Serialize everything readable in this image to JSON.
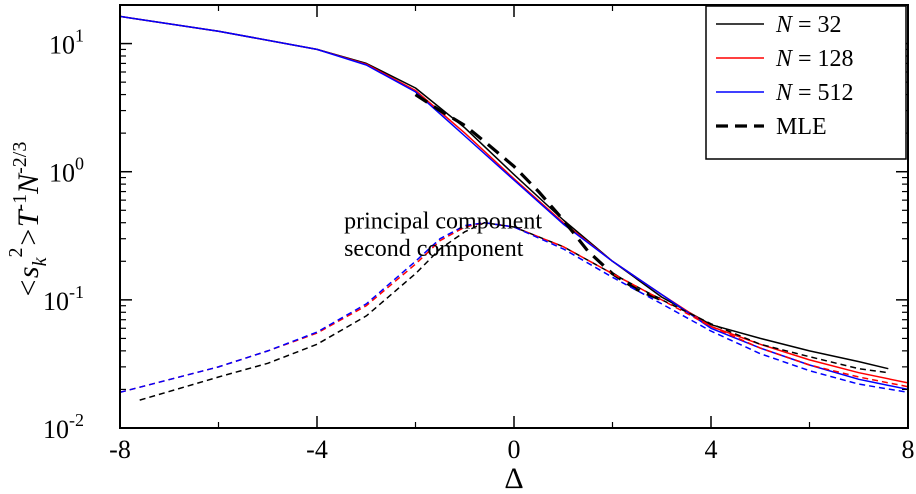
{
  "chart_data": {
    "type": "line",
    "xlabel": "Δ",
    "ylabel_parts": [
      "<s",
      "k",
      "2",
      ">T",
      "-1",
      "N",
      "-2/3"
    ],
    "xlim": [
      -8,
      8
    ],
    "ylim": [
      0.01,
      20
    ],
    "yscale": "log",
    "grid": false,
    "x_ticks": [
      -8,
      -4,
      0,
      4,
      8
    ],
    "x_tick_labels": [
      "-8",
      "-4",
      "0",
      "4",
      "8"
    ],
    "y_ticks": [
      {
        "value": 0.01,
        "base": "10",
        "exp": "-2"
      },
      {
        "value": 0.1,
        "base": "10",
        "exp": "-1"
      },
      {
        "value": 1,
        "base": "10",
        "exp": "0"
      },
      {
        "value": 10,
        "base": "10",
        "exp": "1"
      }
    ],
    "annotations": [
      {
        "text": "principal component",
        "x": -3.45,
        "y": 0.36
      },
      {
        "text": "second component",
        "x": -3.45,
        "y": 0.22
      }
    ],
    "legend": {
      "position": "top-right",
      "entries": [
        {
          "label_italic": "N",
          "label_rest": " = 32",
          "color": "#000000",
          "dash": "solid"
        },
        {
          "label_italic": "N",
          "label_rest": " = 128",
          "color": "#ff0000",
          "dash": "solid"
        },
        {
          "label_italic": "N",
          "label_rest": " = 512",
          "color": "#0000ff",
          "dash": "solid"
        },
        {
          "label_italic": "",
          "label_rest": "MLE",
          "color": "#000000",
          "dash": "dashed-bold"
        }
      ]
    },
    "series": [
      {
        "name": "N = 32",
        "component": "principal",
        "color": "#000000",
        "style": "solid",
        "x": [
          -8,
          -6,
          -4,
          -3,
          -2,
          -1,
          0,
          1,
          2,
          3,
          4,
          5,
          6,
          7,
          7.6
        ],
        "y": [
          16.3,
          12.5,
          9.0,
          7.0,
          4.5,
          2.2,
          0.95,
          0.42,
          0.2,
          0.105,
          0.064,
          0.05,
          0.04,
          0.033,
          0.029
        ]
      },
      {
        "name": "N = 128",
        "component": "principal",
        "color": "#ff0000",
        "style": "solid",
        "x": [
          -8,
          -6,
          -4,
          -3,
          -2,
          -1,
          0,
          1,
          2,
          3,
          4,
          5,
          6,
          7,
          8
        ],
        "y": [
          16.3,
          12.5,
          9.0,
          6.9,
          4.3,
          2.0,
          0.88,
          0.4,
          0.2,
          0.11,
          0.062,
          0.045,
          0.034,
          0.027,
          0.0225
        ]
      },
      {
        "name": "N = 512",
        "component": "principal",
        "color": "#0000ff",
        "style": "solid",
        "x": [
          -8,
          -6,
          -4,
          -3,
          -2,
          -1,
          0,
          1,
          2,
          3,
          4,
          5,
          6,
          7,
          8
        ],
        "y": [
          16.3,
          12.5,
          9.0,
          6.8,
          4.2,
          1.9,
          0.86,
          0.39,
          0.2,
          0.11,
          0.06,
          0.042,
          0.031,
          0.024,
          0.02
        ]
      },
      {
        "name": "MLE",
        "component": "principal",
        "color": "#000000",
        "style": "dashed-bold",
        "x": [
          -2,
          -1.5,
          -1,
          -0.5,
          0,
          0.5,
          1,
          1.5,
          2,
          2.5,
          3
        ],
        "y": [
          4.0,
          3.0,
          2.3,
          1.6,
          1.1,
          0.7,
          0.42,
          0.24,
          0.16,
          0.12,
          0.1
        ]
      },
      {
        "name": "N = 32",
        "component": "second",
        "color": "#000000",
        "style": "dashed",
        "x": [
          -7.6,
          -6,
          -5,
          -4,
          -3,
          -2,
          -1.5,
          -1,
          -0.6,
          0,
          1,
          2,
          3,
          4,
          5,
          6,
          7,
          7.6
        ],
        "y": [
          0.0165,
          0.025,
          0.032,
          0.045,
          0.075,
          0.16,
          0.25,
          0.34,
          0.4,
          0.37,
          0.26,
          0.16,
          0.1,
          0.065,
          0.045,
          0.036,
          0.029,
          0.027
        ]
      },
      {
        "name": "N = 128",
        "component": "second",
        "color": "#ff0000",
        "style": "dashed",
        "x": [
          -8,
          -6,
          -5,
          -4,
          -3,
          -2,
          -1.5,
          -1,
          -0.6,
          0,
          1,
          2,
          3,
          4,
          5,
          6,
          7,
          8
        ],
        "y": [
          0.019,
          0.03,
          0.04,
          0.055,
          0.09,
          0.19,
          0.29,
          0.37,
          0.4,
          0.37,
          0.26,
          0.16,
          0.1,
          0.062,
          0.042,
          0.031,
          0.025,
          0.021
        ]
      },
      {
        "name": "N = 512",
        "component": "second",
        "color": "#0000ff",
        "style": "dashed",
        "x": [
          -8,
          -6,
          -5,
          -4,
          -3,
          -2,
          -1.5,
          -1,
          -0.6,
          0,
          1,
          2,
          3,
          4,
          5,
          6,
          7,
          8
        ],
        "y": [
          0.019,
          0.03,
          0.04,
          0.056,
          0.093,
          0.2,
          0.3,
          0.38,
          0.4,
          0.37,
          0.25,
          0.15,
          0.093,
          0.057,
          0.038,
          0.028,
          0.022,
          0.019
        ]
      }
    ]
  }
}
